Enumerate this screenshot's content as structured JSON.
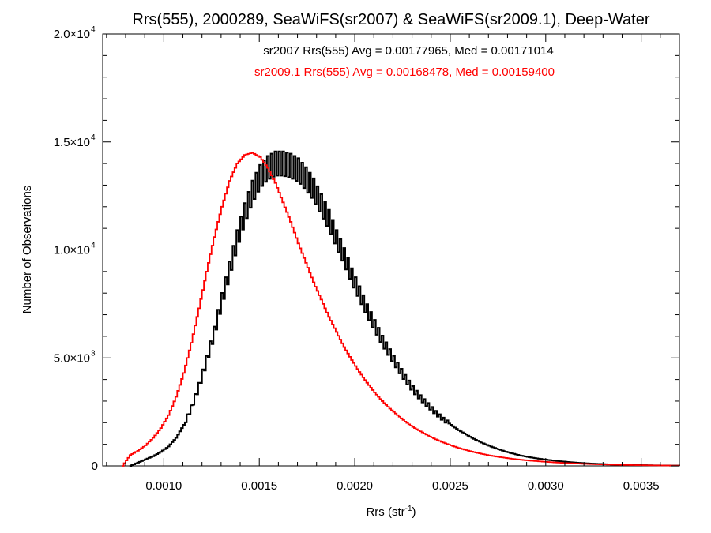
{
  "chart_data": {
    "type": "line",
    "title": "Rrs(555), 2000289, SeaWiFS(sr2007) & SeaWiFS(sr2009.1), Deep-Water",
    "xlabel": {
      "base": "Rrs (str",
      "sup": "-1",
      "tail": ")"
    },
    "ylabel": "Number of Observations",
    "xlim": [
      0.00068,
      0.0037
    ],
    "ylim": [
      0,
      20000
    ],
    "x_ticks": [
      {
        "value": 0.001,
        "label": "0.0010"
      },
      {
        "value": 0.0015,
        "label": "0.0015"
      },
      {
        "value": 0.002,
        "label": "0.0020"
      },
      {
        "value": 0.0025,
        "label": "0.0025"
      },
      {
        "value": 0.003,
        "label": "0.0030"
      },
      {
        "value": 0.0035,
        "label": "0.0035"
      }
    ],
    "y_ticks": [
      {
        "value": 0,
        "mant": "0",
        "exp": ""
      },
      {
        "value": 5000,
        "mant": "5.0×10",
        "exp": "3"
      },
      {
        "value": 10000,
        "mant": "1.0×10",
        "exp": "4"
      },
      {
        "value": 15000,
        "mant": "1.5×10",
        "exp": "4"
      },
      {
        "value": 20000,
        "mant": "2.0×10",
        "exp": "4"
      }
    ],
    "annotations": [
      {
        "text": "sr2007 Rrs(555) Avg = 0.00177965, Med = 0.00171014",
        "color": "#000000"
      },
      {
        "text": "sr2009.1 Rrs(555) Avg = 0.00168478, Med = 0.00159400",
        "color": "#ff0000"
      }
    ],
    "series": [
      {
        "color": "#000000",
        "x": [
          0.00082,
          0.00086,
          0.0009,
          0.00094,
          0.00098,
          0.00102,
          0.00106,
          0.0011,
          0.00114,
          0.00118,
          0.00122,
          0.00126,
          0.0013,
          0.00134,
          0.00138,
          0.00142,
          0.00146,
          0.0015,
          0.00154,
          0.00158,
          0.00162,
          0.00166,
          0.0017,
          0.00174,
          0.00178,
          0.00182,
          0.00186,
          0.0019,
          0.00194,
          0.00198,
          0.00202,
          0.00206,
          0.0021,
          0.00214,
          0.00218,
          0.00222,
          0.00226,
          0.0023,
          0.00234,
          0.00238,
          0.00242,
          0.00246,
          0.0025,
          0.00254,
          0.00258,
          0.00262,
          0.00266,
          0.0027,
          0.00274,
          0.00278,
          0.00282,
          0.00286,
          0.0029,
          0.00294,
          0.00298,
          0.00302,
          0.00306,
          0.0031,
          0.00314,
          0.00318,
          0.00322,
          0.00326,
          0.0033,
          0.00334,
          0.00338,
          0.00342,
          0.00346,
          0.0035,
          0.00354,
          0.00358,
          0.00362,
          0.00366,
          0.0037
        ],
        "y": [
          0,
          150,
          300,
          450,
          650,
          900,
          1300,
          1900,
          2700,
          3700,
          4900,
          6200,
          7700,
          9100,
          10500,
          11700,
          12700,
          13400,
          13800,
          14000,
          14000,
          13900,
          13700,
          13300,
          12800,
          12100,
          11400,
          10500,
          9700,
          8800,
          8000,
          7200,
          6500,
          5800,
          5200,
          4600,
          4050,
          3550,
          3150,
          2800,
          2450,
          2150,
          1900,
          1650,
          1450,
          1250,
          1080,
          930,
          800,
          680,
          580,
          490,
          420,
          360,
          310,
          265,
          225,
          190,
          160,
          135,
          115,
          97,
          82,
          69,
          58,
          48,
          40,
          33,
          27,
          22,
          18,
          14,
          11
        ]
      },
      {
        "color": "#ff0000",
        "x": [
          0.00078,
          0.00082,
          0.00086,
          0.0009,
          0.00094,
          0.00098,
          0.00102,
          0.00106,
          0.0011,
          0.00114,
          0.00118,
          0.00122,
          0.00126,
          0.0013,
          0.00134,
          0.00138,
          0.00142,
          0.00146,
          0.0015,
          0.00154,
          0.00158,
          0.00162,
          0.00166,
          0.0017,
          0.00174,
          0.00178,
          0.00182,
          0.00186,
          0.0019,
          0.00194,
          0.00198,
          0.00202,
          0.00206,
          0.0021,
          0.00214,
          0.00218,
          0.00222,
          0.00226,
          0.0023,
          0.00234,
          0.00238,
          0.00242,
          0.00246,
          0.0025,
          0.00254,
          0.00258,
          0.00262,
          0.00266,
          0.0027,
          0.00274,
          0.00278,
          0.00282,
          0.00286,
          0.0029,
          0.00294,
          0.00298,
          0.00302,
          0.00306,
          0.0031,
          0.00314,
          0.00318,
          0.00322,
          0.00326,
          0.0033,
          0.00334,
          0.00338,
          0.00342,
          0.00346,
          0.0035,
          0.00354,
          0.00358,
          0.00362,
          0.00366,
          0.0037
        ],
        "y": [
          0,
          500,
          700,
          950,
          1300,
          1750,
          2350,
          3200,
          4300,
          5700,
          7300,
          9000,
          10600,
          12000,
          13200,
          14000,
          14400,
          14500,
          14300,
          13800,
          13100,
          12200,
          11300,
          10300,
          9400,
          8500,
          7700,
          6900,
          6200,
          5500,
          4900,
          4350,
          3850,
          3400,
          3000,
          2650,
          2350,
          2050,
          1800,
          1600,
          1400,
          1230,
          1080,
          950,
          830,
          730,
          640,
          560,
          490,
          430,
          380,
          330,
          290,
          255,
          225,
          198,
          174,
          152,
          133,
          116,
          101,
          88,
          76,
          66,
          57,
          49,
          42,
          36,
          31,
          26,
          22,
          18,
          15,
          12
        ]
      }
    ]
  }
}
